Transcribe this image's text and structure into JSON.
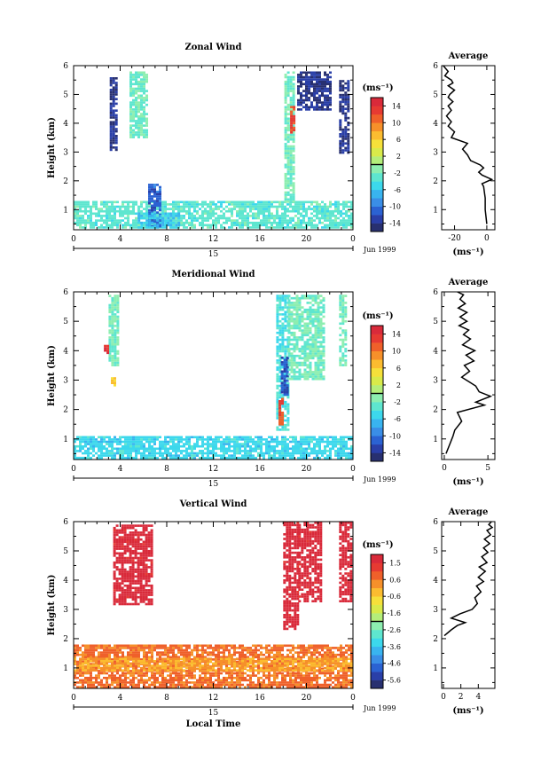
{
  "chart_data": [
    {
      "type": "heatmap",
      "title": "Zonal Wind",
      "xlabel": "",
      "ylabel": "Height (km)",
      "xlim": [
        0,
        24
      ],
      "ylim": [
        0.3,
        6
      ],
      "x_ticks": [
        "0",
        "4",
        "8",
        "12",
        "16",
        "20",
        "0"
      ],
      "y_ticks": [
        "1",
        "2",
        "3",
        "4",
        "5",
        "6"
      ],
      "date_ticks": [
        "15"
      ],
      "date_label": "Jun 1999",
      "unit": "(ms⁻¹)",
      "colorbar_ticks": [
        "14",
        "10",
        "6",
        "2",
        "-2",
        "-6",
        "-10",
        "-14"
      ],
      "colorbar_range": [
        -16,
        16
      ],
      "regions": [
        {
          "t0": 0.0,
          "t1": 24.0,
          "z0": 0.35,
          "z1": 1.3,
          "value": -3
        },
        {
          "t0": 6.4,
          "t1": 7.4,
          "z0": 0.4,
          "z1": 1.9,
          "value": -11
        },
        {
          "t0": 5.5,
          "t1": 9.0,
          "z0": 0.35,
          "z1": 0.9,
          "value": -6
        },
        {
          "t0": 3.1,
          "t1": 3.7,
          "z0": 3.1,
          "z1": 5.6,
          "value": -14
        },
        {
          "t0": 4.8,
          "t1": 6.4,
          "z0": 3.5,
          "z1": 5.8,
          "value": -2
        },
        {
          "t0": 18.1,
          "t1": 19.0,
          "z0": 1.3,
          "z1": 5.8,
          "value": -2
        },
        {
          "t0": 18.6,
          "t1": 19.0,
          "z0": 3.7,
          "z1": 4.6,
          "value": 12
        },
        {
          "t0": 19.2,
          "t1": 22.0,
          "z0": 4.5,
          "z1": 5.8,
          "value": -14
        },
        {
          "t0": 22.8,
          "t1": 23.6,
          "z0": 3.0,
          "z1": 5.5,
          "value": -14
        }
      ],
      "profile": {
        "title": "Average",
        "xlabel": "(ms⁻¹)",
        "x_ticks": [
          "-20",
          "0"
        ],
        "xlim": [
          -28,
          5
        ],
        "y_ticks": [
          "1",
          "2",
          "3",
          "4",
          "5",
          "6"
        ],
        "ylim": [
          0.3,
          6
        ],
        "x": [
          0,
          -1,
          -1,
          -2,
          -3,
          3,
          -3,
          -5,
          -2,
          -4,
          -10,
          -12,
          -15,
          -12,
          -22,
          -20,
          -24,
          -22,
          -25,
          -22,
          -24,
          -21,
          -24,
          -23,
          -20,
          -24,
          -21,
          -22,
          -26,
          -24,
          -27
        ],
        "z": [
          0.5,
          1.0,
          1.4,
          1.8,
          1.9,
          2.05,
          2.2,
          2.3,
          2.45,
          2.55,
          2.7,
          2.9,
          3.1,
          3.3,
          3.5,
          3.7,
          3.9,
          4.05,
          4.25,
          4.45,
          4.6,
          4.75,
          4.9,
          5.0,
          5.15,
          5.3,
          5.4,
          5.5,
          5.65,
          5.8,
          6.0
        ]
      }
    },
    {
      "type": "heatmap",
      "title": "Meridional Wind",
      "xlabel": "",
      "ylabel": "Height (km)",
      "xlim": [
        0,
        24
      ],
      "ylim": [
        0.3,
        6
      ],
      "x_ticks": [
        "0",
        "4",
        "8",
        "12",
        "16",
        "20",
        "0"
      ],
      "y_ticks": [
        "1",
        "2",
        "3",
        "4",
        "5",
        "6"
      ],
      "date_ticks": [
        "15"
      ],
      "date_label": "Jun 1999",
      "unit": "(ms⁻¹)",
      "colorbar_ticks": [
        "14",
        "10",
        "6",
        "2",
        "-2",
        "-6",
        "-10",
        "-14"
      ],
      "colorbar_range": [
        -16,
        16
      ],
      "regions": [
        {
          "t0": 0.0,
          "t1": 24.0,
          "z0": 0.35,
          "z1": 1.1,
          "value": -5
        },
        {
          "t0": 3.0,
          "t1": 3.9,
          "z0": 3.5,
          "z1": 5.9,
          "value": -2
        },
        {
          "t0": 2.6,
          "t1": 2.9,
          "z0": 3.9,
          "z1": 4.2,
          "value": 14
        },
        {
          "t0": 3.2,
          "t1": 3.5,
          "z0": 2.8,
          "z1": 3.1,
          "value": 6
        },
        {
          "t0": 17.4,
          "t1": 18.4,
          "z0": 1.3,
          "z1": 5.9,
          "value": -4
        },
        {
          "t0": 17.8,
          "t1": 18.3,
          "z0": 2.5,
          "z1": 3.8,
          "value": -12
        },
        {
          "t0": 17.6,
          "t1": 18.0,
          "z0": 1.5,
          "z1": 2.4,
          "value": 12
        },
        {
          "t0": 18.4,
          "t1": 21.5,
          "z0": 3.0,
          "z1": 5.9,
          "value": -2
        },
        {
          "t0": 22.8,
          "t1": 23.4,
          "z0": 3.5,
          "z1": 5.9,
          "value": -2
        }
      ],
      "profile": {
        "title": "Average",
        "xlabel": "(ms⁻¹)",
        "x_ticks": [
          "0",
          "5"
        ],
        "xlim": [
          -0.3,
          5.8
        ],
        "y_ticks": [
          "1",
          "2",
          "3",
          "4",
          "5",
          "6"
        ],
        "ylim": [
          0.3,
          6
        ],
        "x": [
          0.2,
          0.6,
          1.0,
          1.2,
          2.0,
          1.5,
          4.6,
          3.6,
          5.3,
          4.0,
          3.6,
          2.8,
          2.0,
          2.9,
          2.3,
          3.4,
          2.5,
          3.5,
          2.1,
          3.0,
          2.2,
          2.8,
          1.7,
          2.6,
          1.8,
          2.6,
          1.6,
          2.4,
          1.8,
          2.2,
          1.5
        ],
        "z": [
          0.5,
          0.8,
          1.1,
          1.3,
          1.6,
          1.9,
          2.15,
          2.25,
          2.45,
          2.6,
          2.8,
          2.95,
          3.1,
          3.3,
          3.5,
          3.65,
          3.85,
          4.0,
          4.2,
          4.4,
          4.55,
          4.7,
          4.85,
          5.0,
          5.15,
          5.3,
          5.45,
          5.6,
          5.75,
          5.9,
          6.0
        ]
      }
    },
    {
      "type": "heatmap",
      "title": "Vertical Wind",
      "xlabel": "Local Time",
      "ylabel": "Height (km)",
      "xlim": [
        0,
        24
      ],
      "ylim": [
        0.3,
        6
      ],
      "x_ticks": [
        "0",
        "4",
        "8",
        "12",
        "16",
        "20",
        "0"
      ],
      "y_ticks": [
        "1",
        "2",
        "3",
        "4",
        "5",
        "6"
      ],
      "date_ticks": [
        "15"
      ],
      "date_label": "Jun 1999",
      "unit": "(ms⁻¹)",
      "colorbar_ticks": [
        "1.5",
        "0.6",
        "-0.6",
        "-1.6",
        "-2.6",
        "-3.6",
        "-4.6",
        "-5.6"
      ],
      "colorbar_range": [
        -6,
        2
      ],
      "regions": [
        {
          "t0": 0.0,
          "t1": 24.0,
          "z0": 0.3,
          "z1": 1.8,
          "value": 0.6
        },
        {
          "t0": 0.0,
          "t1": 24.0,
          "z0": 0.9,
          "z1": 1.35,
          "value": 0.0
        },
        {
          "t0": 3.4,
          "t1": 6.8,
          "z0": 3.2,
          "z1": 5.9,
          "value": 1.8
        },
        {
          "t0": 18.0,
          "t1": 19.3,
          "z0": 2.3,
          "z1": 6.0,
          "value": 1.8
        },
        {
          "t0": 19.3,
          "t1": 21.2,
          "z0": 3.3,
          "z1": 6.0,
          "value": 1.8
        },
        {
          "t0": 22.8,
          "t1": 23.8,
          "z0": 3.3,
          "z1": 6.0,
          "value": 1.8
        }
      ],
      "profile": {
        "title": "Average",
        "xlabel": "(ms⁻¹)",
        "x_ticks": [
          "0",
          "2",
          "4"
        ],
        "xlim": [
          -0.2,
          5.9
        ],
        "y_ticks": [
          "1",
          "2",
          "3",
          "4",
          "5",
          "6"
        ],
        "ylim": [
          0.3,
          6
        ],
        "x": [
          0.1,
          0.9,
          1.6,
          2.5,
          0.9,
          1.9,
          3.3,
          3.9,
          3.6,
          4.3,
          3.8,
          4.6,
          4.0,
          4.8,
          4.1,
          5.0,
          4.4,
          5.1,
          4.6,
          5.3,
          4.7,
          5.4,
          5.0,
          5.6,
          5.2,
          5.5
        ],
        "z": [
          2.1,
          2.3,
          2.45,
          2.55,
          2.7,
          2.85,
          3.0,
          3.2,
          3.4,
          3.6,
          3.8,
          3.95,
          4.1,
          4.3,
          4.45,
          4.6,
          4.8,
          4.95,
          5.1,
          5.25,
          5.4,
          5.55,
          5.7,
          5.8,
          5.9,
          6.0
        ]
      }
    }
  ]
}
